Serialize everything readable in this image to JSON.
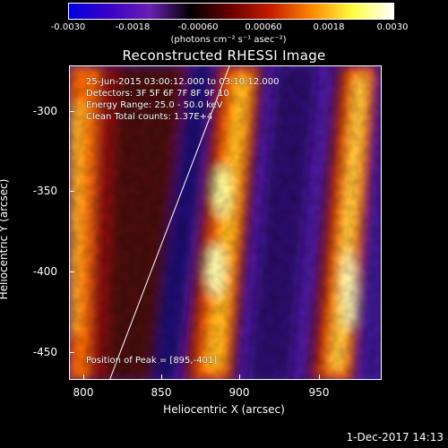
{
  "colorbar": {
    "ticks": [
      "-0.0030",
      "-0.0018",
      "-0.00060",
      "0.00060",
      "0.0018",
      "0.0030"
    ],
    "units": "(photons cm⁻² s⁻¹ asec⁻²)",
    "colors": [
      "#0000e0",
      "#3a00c8",
      "#6a1fb4",
      "#000000",
      "#6a0000",
      "#c81e00",
      "#ff8a00",
      "#ffff40",
      "#ffffff"
    ]
  },
  "title": "Reconstructed RHESSI Image",
  "annotations": {
    "line1": "25-Jun-2015 03:00:12.000 to 03:10:12.000",
    "line2": "Detectors: 3F 5F 6F 7F 8F 9F 10",
    "line3": "Energy Range: 25.0 - 50.0 keV",
    "line4": "Clean    Total counts: 1.37E+4",
    "peak": "Position of Peak = [895,-401]"
  },
  "axes": {
    "xlabel": "Heliocentric X (arcsec)",
    "ylabel": "Heliocentric Y (arcsec)",
    "xticks": [
      "800",
      "850",
      "900",
      "950"
    ],
    "yticks": [
      "-300",
      "-350",
      "-400",
      "-450"
    ],
    "xlim": [
      791,
      986
    ],
    "ylim": [
      -468,
      -272
    ]
  },
  "datestamp": "1-Dec-2017 14:13"
}
